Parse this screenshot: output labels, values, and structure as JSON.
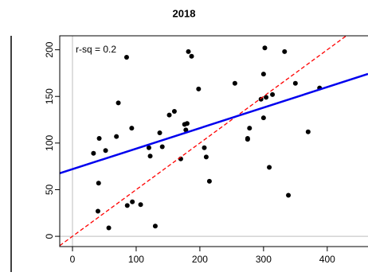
{
  "chart_data": {
    "type": "scatter",
    "title": "2018",
    "annotation": "r-sq =  0.2",
    "x": [
      85,
      182,
      187,
      302,
      333,
      300,
      255,
      350,
      388,
      198,
      72,
      314,
      304,
      296,
      160,
      152,
      278,
      180,
      178,
      93,
      137,
      370,
      176,
      69,
      42,
      275,
      275,
      300,
      120,
      141,
      122,
      52,
      33,
      207,
      210,
      170,
      41,
      215,
      309,
      94,
      86,
      107,
      339,
      40,
      57,
      130
    ],
    "values": [
      192,
      198,
      193,
      202,
      198,
      174,
      164,
      164,
      159,
      158,
      143,
      152,
      149,
      147,
      134,
      130,
      116,
      121,
      114,
      116,
      111,
      112,
      120,
      107,
      105,
      105,
      104,
      127,
      95,
      96,
      86,
      92,
      89,
      95,
      85,
      83,
      57,
      59,
      74,
      37,
      33,
      34,
      44,
      27,
      9,
      11
    ],
    "color": "#000000",
    "xlim": [
      -20,
      464
    ],
    "ylim": [
      -11,
      215
    ],
    "xticks": [
      0,
      100,
      200,
      300,
      400
    ],
    "yticks": [
      0,
      50,
      100,
      150,
      200
    ],
    "fit": {
      "intercept": 72,
      "slope": 0.22,
      "color": "#0000ee",
      "dashed": false
    },
    "reference": {
      "intercept": 0,
      "slope": 0.5,
      "color": "#ff0000",
      "dashed": true
    },
    "hlines": [
      0
    ],
    "vlines": [
      0
    ],
    "reference_line_color": "#bebebe"
  }
}
